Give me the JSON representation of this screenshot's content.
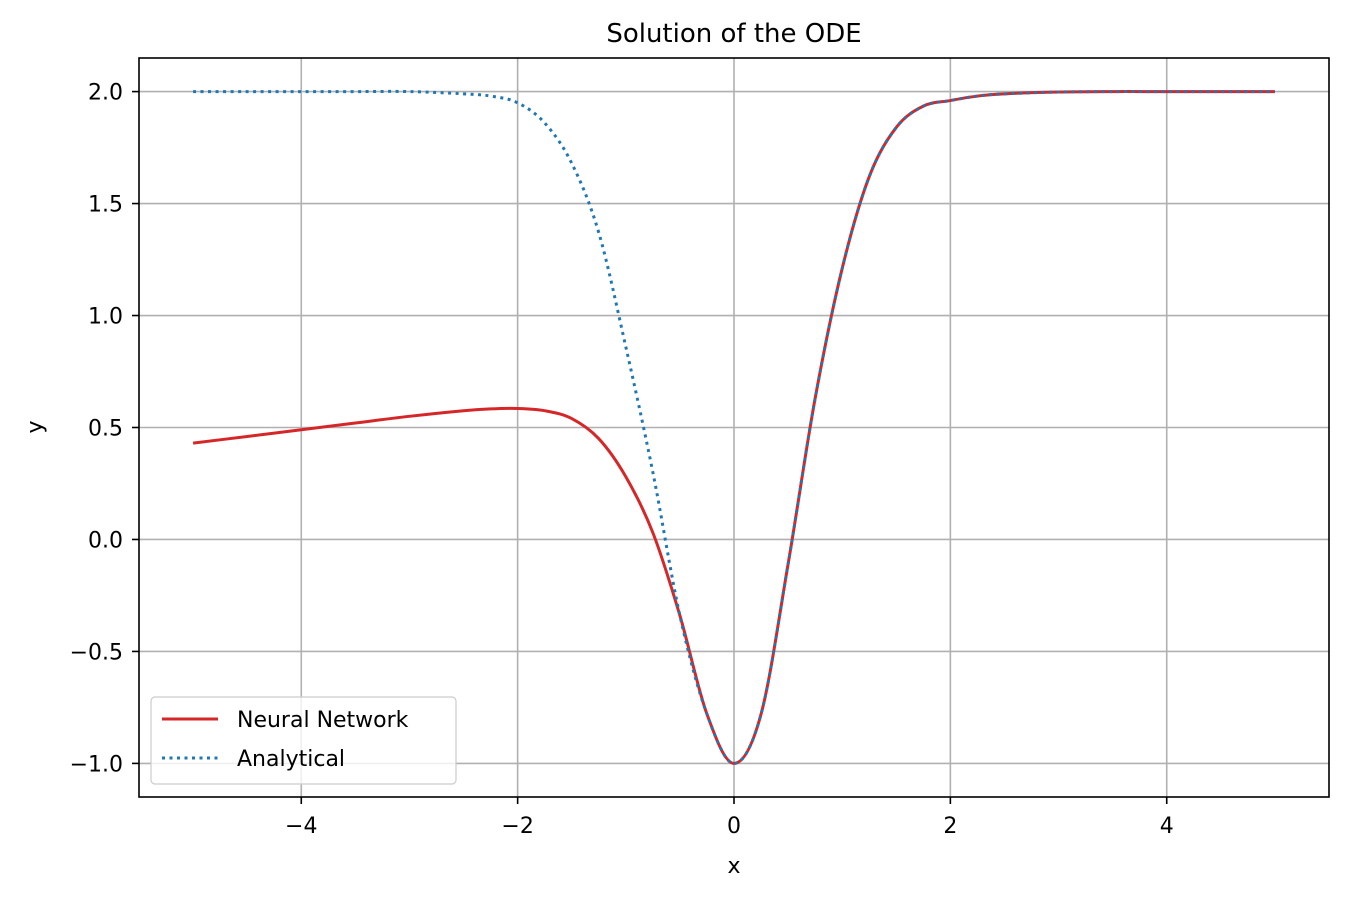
{
  "chart_data": {
    "type": "line",
    "title": "Solution of the ODE",
    "xlabel": "x",
    "ylabel": "y",
    "xlim": [
      -5.5,
      5.5
    ],
    "ylim": [
      -1.15,
      2.15
    ],
    "grid": true,
    "legend_position": "lower-left",
    "x_ticks": [
      {
        "value": -4,
        "label": "−4"
      },
      {
        "value": -2,
        "label": "−2"
      },
      {
        "value": 0,
        "label": "0"
      },
      {
        "value": 2,
        "label": "2"
      },
      {
        "value": 4,
        "label": "4"
      }
    ],
    "y_ticks": [
      {
        "value": -1.0,
        "label": "−1.0"
      },
      {
        "value": -0.5,
        "label": "−0.5"
      },
      {
        "value": 0.0,
        "label": "0.0"
      },
      {
        "value": 0.5,
        "label": "0.5"
      },
      {
        "value": 1.0,
        "label": "1.0"
      },
      {
        "value": 1.5,
        "label": "1.5"
      },
      {
        "value": 2.0,
        "label": "2.0"
      }
    ],
    "series": [
      {
        "name": "Neural Network",
        "color": "#d62728",
        "style": "solid",
        "x": [
          -5.0,
          -4.5,
          -4.0,
          -3.5,
          -3.0,
          -2.5,
          -2.25,
          -2.0,
          -1.75,
          -1.5,
          -1.25,
          -1.0,
          -0.75,
          -0.5,
          -0.25,
          0.0,
          0.25,
          0.5,
          0.75,
          1.0,
          1.25,
          1.5,
          1.75,
          2.0,
          2.25,
          2.5,
          3.0,
          3.5,
          4.0,
          4.5,
          5.0
        ],
        "y": [
          0.43,
          0.46,
          0.49,
          0.52,
          0.55,
          0.575,
          0.583,
          0.585,
          0.575,
          0.54,
          0.45,
          0.28,
          0.03,
          -0.34,
          -0.78,
          -1.0,
          -0.78,
          -0.11,
          0.63,
          1.21,
          1.62,
          1.84,
          1.935,
          1.96,
          1.98,
          1.99,
          1.998,
          2.0,
          2.0,
          2.0,
          2.0
        ]
      },
      {
        "name": "Analytical",
        "color": "#1f77b4",
        "style": "dotted",
        "x": [
          -5.0,
          -4.5,
          -4.0,
          -3.5,
          -3.0,
          -2.5,
          -2.25,
          -2.0,
          -1.75,
          -1.5,
          -1.25,
          -1.0,
          -0.75,
          -0.5,
          -0.25,
          0.0,
          0.25,
          0.5,
          0.75,
          1.0,
          1.25,
          1.5,
          1.75,
          2.0,
          2.25,
          2.5,
          3.0,
          3.5,
          4.0,
          4.5,
          5.0
        ],
        "y": [
          2.0,
          2.0,
          2.0,
          2.0,
          2.0,
          1.99,
          1.98,
          1.95,
          1.86,
          1.68,
          1.37,
          0.86,
          0.3,
          -0.34,
          -0.78,
          -1.0,
          -0.78,
          -0.11,
          0.63,
          1.21,
          1.62,
          1.84,
          1.935,
          1.96,
          1.98,
          1.99,
          1.998,
          2.0,
          2.0,
          2.0,
          2.0
        ]
      }
    ]
  }
}
